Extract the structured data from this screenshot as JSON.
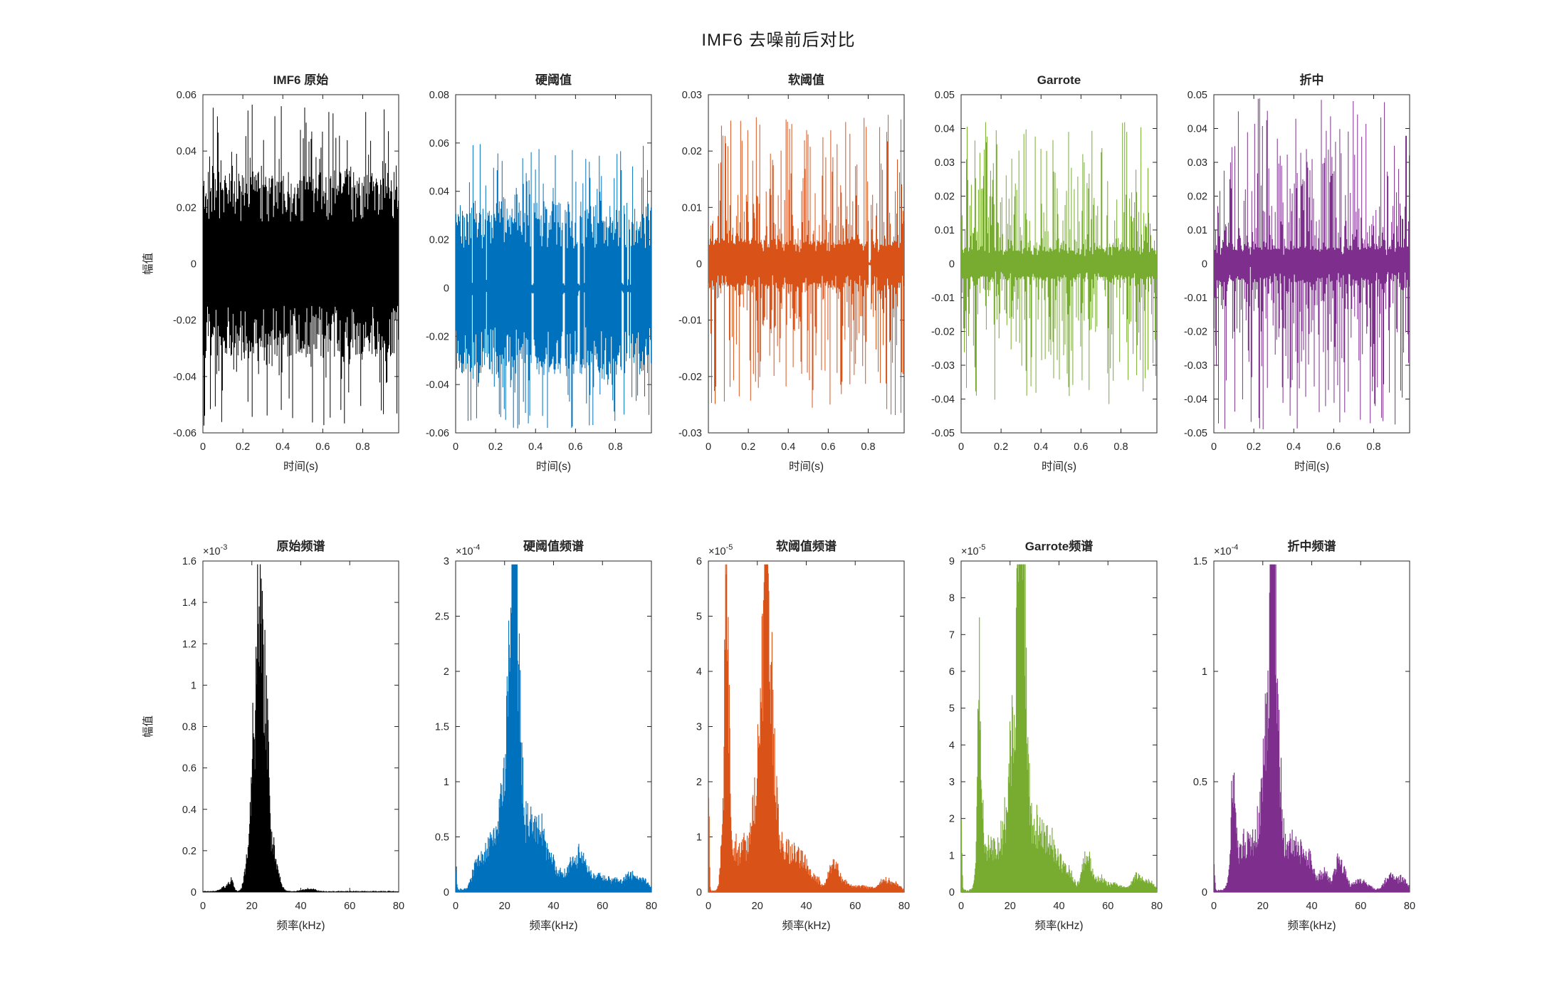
{
  "figure": {
    "title": "IMF6 去噪前后对比",
    "background": "#ffffff",
    "axes_color": "#262626",
    "time_xlabel": "时间(s)",
    "freq_xlabel": "频率(kHz)",
    "amplitude_ylabel": "幅值"
  },
  "colors": {
    "original": "#000000",
    "hard_threshold": "#0072BD",
    "soft_threshold": "#D95319",
    "garrote": "#77AC30",
    "compromise": "#7E2F8E"
  },
  "chart_data": [
    {
      "id": "imf6-original",
      "row": "time",
      "type": "line",
      "title": "IMF6 原始",
      "color": "#000000",
      "xlabel": "时间(s)",
      "ylabel": "幅值",
      "xlim": [
        0,
        0.98
      ],
      "xticks": [
        0,
        0.2,
        0.4,
        0.6,
        0.8
      ],
      "ylim": [
        -0.06,
        0.06
      ],
      "yticks": [
        -0.06,
        -0.04,
        -0.02,
        0,
        0.02,
        0.04,
        0.06
      ],
      "signal": {
        "band": 0.033,
        "spike_prob": 0.4,
        "spike_pow": 3.0,
        "peak": 0.058,
        "gap_prob": 0
      }
    },
    {
      "id": "hard-threshold",
      "row": "time",
      "type": "line",
      "title": "硬阈值",
      "color": "#0072BD",
      "xlabel": "时间(s)",
      "ylabel": "",
      "xlim": [
        0,
        0.98
      ],
      "xticks": [
        0,
        0.2,
        0.4,
        0.6,
        0.8
      ],
      "ylim": [
        -0.06,
        0.08
      ],
      "yticks": [
        -0.06,
        -0.04,
        -0.02,
        0,
        0.02,
        0.04,
        0.06,
        0.08
      ],
      "signal": {
        "band": 0.036,
        "spike_prob": 0.5,
        "spike_pow": 2.6,
        "peak": 0.06,
        "gap_prob": 0.03
      }
    },
    {
      "id": "soft-threshold",
      "row": "time",
      "type": "line",
      "title": "软阈值",
      "color": "#D95319",
      "xlabel": "时间(s)",
      "ylabel": "",
      "xlim": [
        0,
        0.98
      ],
      "xticks": [
        0,
        0.2,
        0.4,
        0.6,
        0.8
      ],
      "ylim": [
        -0.03,
        0.03
      ],
      "yticks": [
        -0.03,
        -0.02,
        -0.01,
        0,
        0.01,
        0.02,
        0.03
      ],
      "signal": {
        "band": 0.0045,
        "spike_prob": 0.85,
        "spike_pow": 3.0,
        "peak": 0.027,
        "gap_prob": 0.01
      }
    },
    {
      "id": "garrote",
      "row": "time",
      "type": "line",
      "title": "Garrote",
      "color": "#77AC30",
      "xlabel": "时间(s)",
      "ylabel": "",
      "xlim": [
        0,
        0.98
      ],
      "xticks": [
        0,
        0.2,
        0.4,
        0.6,
        0.8
      ],
      "ylim": [
        -0.05,
        0.05
      ],
      "yticks": [
        -0.05,
        -0.04,
        -0.03,
        -0.02,
        -0.01,
        0,
        0.01,
        0.02,
        0.03,
        0.04,
        0.05
      ],
      "signal": {
        "band": 0.005,
        "spike_prob": 0.85,
        "spike_pow": 3.0,
        "peak": 0.042,
        "gap_prob": 0.01
      }
    },
    {
      "id": "compromise",
      "row": "time",
      "type": "line",
      "title": "折中",
      "color": "#7E2F8E",
      "xlabel": "时间(s)",
      "ylabel": "",
      "xlim": [
        0,
        0.98
      ],
      "xticks": [
        0,
        0.2,
        0.4,
        0.6,
        0.8
      ],
      "ylim": [
        -0.05,
        0.05
      ],
      "yticks": [
        -0.05,
        -0.04,
        -0.03,
        -0.02,
        -0.01,
        0,
        0.01,
        0.02,
        0.03,
        0.04,
        0.05
      ],
      "signal": {
        "band": 0.0055,
        "spike_prob": 0.9,
        "spike_pow": 2.6,
        "peak": 0.049,
        "gap_prob": 0.005
      }
    },
    {
      "id": "original-spectrum",
      "row": "freq",
      "type": "area",
      "title": "原始频谱",
      "color": "#000000",
      "xlabel": "频率(kHz)",
      "ylabel": "幅值",
      "exponent": "-3",
      "xlim": [
        0,
        80
      ],
      "xticks": [
        0,
        20,
        40,
        60,
        80
      ],
      "ylim": [
        0,
        1.6
      ],
      "yticks": [
        0,
        0.2,
        0.4,
        0.6,
        0.8,
        1,
        1.2,
        1.4,
        1.6
      ],
      "floor": 0.006,
      "peaks": [
        [
          23.6,
          1.48,
          0.45
        ],
        [
          22.4,
          1.28,
          0.5
        ],
        [
          24.8,
          0.92,
          0.7
        ],
        [
          26.3,
          0.72,
          0.7
        ],
        [
          21.0,
          0.5,
          1.0
        ],
        [
          23.5,
          0.5,
          2.2
        ],
        [
          20.0,
          0.38,
          1.3
        ],
        [
          17.5,
          0.1,
          1.0
        ],
        [
          28.6,
          0.22,
          1.0
        ],
        [
          30.5,
          0.09,
          1.5
        ],
        [
          11.3,
          0.065,
          1.0
        ],
        [
          8.5,
          0.025,
          1.5
        ],
        [
          42,
          0.012,
          2
        ],
        [
          45,
          0.01,
          1.5
        ]
      ]
    },
    {
      "id": "hard-threshold-spectrum",
      "row": "freq",
      "type": "area",
      "title": "硬阈值频谱",
      "color": "#0072BD",
      "xlabel": "频率(kHz)",
      "ylabel": "",
      "exponent": "-4",
      "xlim": [
        0,
        80
      ],
      "xticks": [
        0,
        20,
        40,
        60,
        80
      ],
      "ylim": [
        0,
        3
      ],
      "yticks": [
        0,
        0.5,
        1,
        1.5,
        2,
        2.5,
        3
      ],
      "floor": 0.035,
      "peaks": [
        [
          0,
          0.27,
          0.25
        ],
        [
          23.6,
          2.78,
          0.4
        ],
        [
          24.4,
          2.4,
          0.45
        ],
        [
          23.9,
          1.35,
          1.1
        ],
        [
          22.2,
          1.25,
          1.3
        ],
        [
          25.6,
          1.4,
          1.2
        ],
        [
          24,
          0.85,
          3.5
        ],
        [
          20.5,
          0.65,
          2.5
        ],
        [
          16,
          0.38,
          3
        ],
        [
          11.5,
          0.28,
          2.5
        ],
        [
          8,
          0.2,
          1.5
        ],
        [
          30,
          0.5,
          2
        ],
        [
          33.5,
          0.42,
          2
        ],
        [
          35.5,
          0.4,
          1.5
        ],
        [
          39,
          0.3,
          1.5
        ],
        [
          43,
          0.22,
          2
        ],
        [
          47.5,
          0.26,
          1.5
        ],
        [
          50.5,
          0.28,
          1.5
        ],
        [
          53,
          0.2,
          2
        ],
        [
          58,
          0.13,
          3
        ],
        [
          65,
          0.1,
          4
        ],
        [
          72,
          0.14,
          2.5
        ],
        [
          77,
          0.1,
          2
        ]
      ]
    },
    {
      "id": "soft-threshold-spectrum",
      "row": "freq",
      "type": "area",
      "title": "软阈值频谱",
      "color": "#D95319",
      "xlabel": "频率(kHz)",
      "ylabel": "",
      "exponent": "-5",
      "xlim": [
        0,
        80
      ],
      "xticks": [
        0,
        20,
        40,
        60,
        80
      ],
      "ylim": [
        0,
        6
      ],
      "yticks": [
        0,
        1,
        2,
        3,
        4,
        5,
        6
      ],
      "floor": 0.05,
      "peaks": [
        [
          0,
          2.65,
          0.25
        ],
        [
          7.3,
          4.1,
          0.35
        ],
        [
          6.7,
          3.3,
          0.4
        ],
        [
          8.2,
          3.0,
          0.5
        ],
        [
          7.5,
          1.7,
          1.1
        ],
        [
          5.5,
          0.9,
          0.8
        ],
        [
          23.8,
          4.95,
          0.45
        ],
        [
          23.1,
          4.3,
          0.7
        ],
        [
          24.9,
          3.0,
          0.9
        ],
        [
          21.2,
          2.35,
          1.3
        ],
        [
          26.5,
          1.95,
          1.4
        ],
        [
          23.5,
          2.3,
          2.4
        ],
        [
          18.5,
          1.1,
          1.8
        ],
        [
          15.5,
          0.65,
          2.5
        ],
        [
          12,
          0.55,
          2
        ],
        [
          10,
          0.6,
          1
        ],
        [
          30,
          0.95,
          1.8
        ],
        [
          33.5,
          0.7,
          1.8
        ],
        [
          36.5,
          0.68,
          1.4
        ],
        [
          39.5,
          0.6,
          1.4
        ],
        [
          43.5,
          0.32,
          2
        ],
        [
          50,
          0.48,
          1.4
        ],
        [
          52.5,
          0.42,
          1.4
        ],
        [
          56,
          0.18,
          2
        ],
        [
          63,
          0.1,
          3
        ],
        [
          72,
          0.23,
          2
        ],
        [
          76.5,
          0.14,
          2
        ]
      ]
    },
    {
      "id": "garrote-spectrum",
      "row": "freq",
      "type": "area",
      "title": "Garrote频谱",
      "color": "#77AC30",
      "xlabel": "频率(kHz)",
      "ylabel": "",
      "exponent": "-5",
      "xlim": [
        0,
        80
      ],
      "xticks": [
        0,
        20,
        40,
        60,
        80
      ],
      "ylim": [
        0,
        9
      ],
      "yticks": [
        0,
        1,
        2,
        3,
        4,
        5,
        6,
        7,
        8,
        9
      ],
      "floor": 0.07,
      "peaks": [
        [
          0,
          2.75,
          0.25
        ],
        [
          7.3,
          4.05,
          0.35
        ],
        [
          6.7,
          3.3,
          0.4
        ],
        [
          8.2,
          2.95,
          0.5
        ],
        [
          7.5,
          1.6,
          1.3
        ],
        [
          24.1,
          8.5,
          0.4
        ],
        [
          23.3,
          7.7,
          0.55
        ],
        [
          24.9,
          5.9,
          0.7
        ],
        [
          25.9,
          5.3,
          0.6
        ],
        [
          23.5,
          4.1,
          2.1
        ],
        [
          21.2,
          3.4,
          1.4
        ],
        [
          27,
          3.2,
          1.2
        ],
        [
          18.5,
          1.7,
          1.9
        ],
        [
          14.5,
          1.1,
          2.4
        ],
        [
          11,
          0.95,
          1.8
        ],
        [
          30.5,
          1.7,
          1.8
        ],
        [
          33.5,
          1.35,
          1.8
        ],
        [
          36.5,
          1.25,
          1.4
        ],
        [
          39.5,
          1.05,
          1.8
        ],
        [
          44,
          0.65,
          2
        ],
        [
          50.5,
          0.8,
          1.4
        ],
        [
          52.5,
          0.75,
          1.4
        ],
        [
          57,
          0.38,
          2
        ],
        [
          63,
          0.22,
          3
        ],
        [
          72,
          0.48,
          2
        ],
        [
          77,
          0.28,
          2
        ]
      ]
    },
    {
      "id": "compromise-spectrum",
      "row": "freq",
      "type": "area",
      "title": "折中频谱",
      "color": "#7E2F8E",
      "xlabel": "频率(kHz)",
      "ylabel": "",
      "exponent": "-4",
      "xlim": [
        0,
        80
      ],
      "xticks": [
        0,
        20,
        40,
        60,
        80
      ],
      "ylim": [
        0,
        1.5
      ],
      "yticks": [
        0,
        0.5,
        1,
        1.5
      ],
      "floor": 0.011,
      "peaks": [
        [
          0,
          0.16,
          0.25
        ],
        [
          7.3,
          0.39,
          0.45
        ],
        [
          8.3,
          0.33,
          0.55
        ],
        [
          7.5,
          0.18,
          1.4
        ],
        [
          24.0,
          1.42,
          0.4
        ],
        [
          23.3,
          1.28,
          0.55
        ],
        [
          24.8,
          1.02,
          0.75
        ],
        [
          23.5,
          0.7,
          2.1
        ],
        [
          21.2,
          0.58,
          1.4
        ],
        [
          26.8,
          0.52,
          1.2
        ],
        [
          18.5,
          0.28,
          1.9
        ],
        [
          14.5,
          0.2,
          2.4
        ],
        [
          11,
          0.2,
          1.8
        ],
        [
          31,
          0.26,
          1.9
        ],
        [
          35,
          0.2,
          1.9
        ],
        [
          39,
          0.17,
          1.8
        ],
        [
          45,
          0.11,
          2
        ],
        [
          50.5,
          0.135,
          1.4
        ],
        [
          53,
          0.11,
          1.4
        ],
        [
          60,
          0.06,
          3
        ],
        [
          72,
          0.085,
          2
        ],
        [
          77,
          0.065,
          2
        ]
      ]
    }
  ]
}
